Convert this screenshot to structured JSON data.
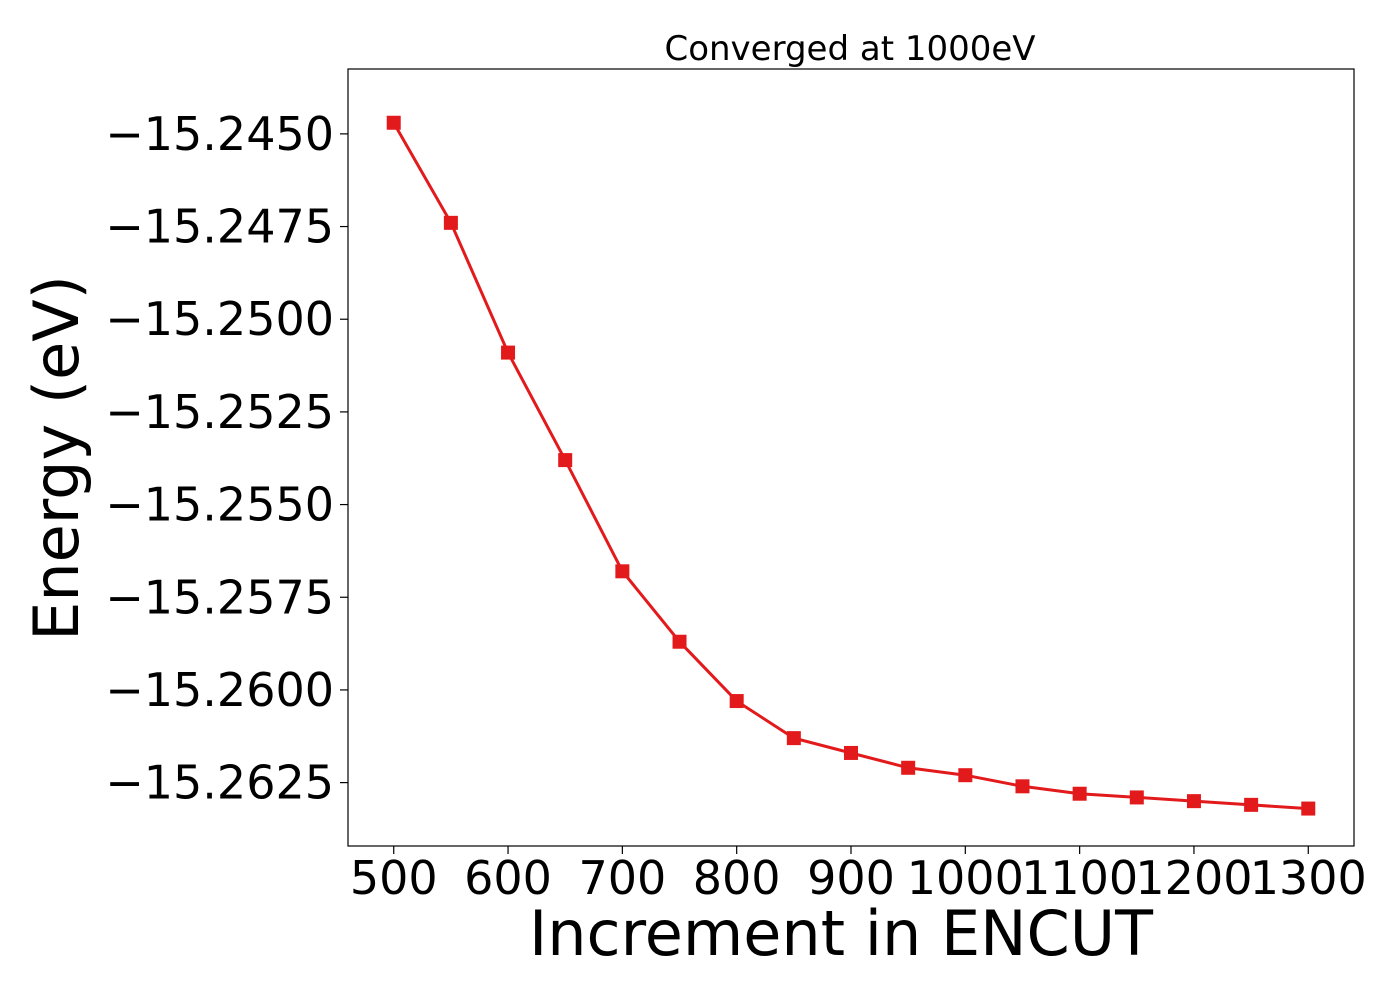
{
  "chart_data": {
    "type": "line",
    "title": "Converged at 1000eV",
    "xlabel": "Increment in ENCUT",
    "ylabel": "Energy (eV)",
    "xlim": [
      460,
      1340
    ],
    "ylim": [
      -15.26421,
      -15.24325
    ],
    "xticks": [
      500,
      600,
      700,
      800,
      900,
      1000,
      1100,
      1200,
      1300
    ],
    "xtick_labels": [
      "500",
      "600",
      "700",
      "800",
      "900",
      "1000",
      "1100",
      "1200",
      "1300"
    ],
    "yticks": [
      -15.245,
      -15.2475,
      -15.25,
      -15.2525,
      -15.255,
      -15.2575,
      -15.26,
      -15.2625
    ],
    "ytick_labels": [
      "−15.2450",
      "−15.2475",
      "−15.2500",
      "−15.2525",
      "−15.2550",
      "−15.2575",
      "−15.2600",
      "−15.2625"
    ],
    "grid": false,
    "legend": "none",
    "series": [
      {
        "color": "#e31a1c",
        "marker": "square",
        "x": [
          500,
          550,
          600,
          650,
          700,
          750,
          800,
          850,
          900,
          950,
          1000,
          1050,
          1100,
          1150,
          1200,
          1250,
          1300
        ],
        "y": [
          -15.2447,
          -15.2474,
          -15.2509,
          -15.2538,
          -15.2568,
          -15.2587,
          -15.2603,
          -15.2613,
          -15.2617,
          -15.2621,
          -15.2623,
          -15.2626,
          -15.2628,
          -15.2629,
          -15.263,
          -15.2631,
          -15.2632
        ]
      }
    ]
  }
}
